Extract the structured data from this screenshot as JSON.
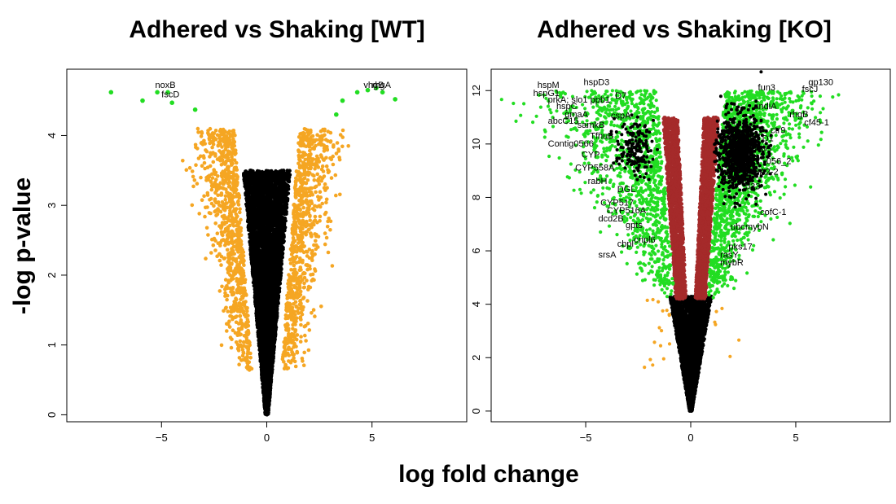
{
  "labels": {
    "ylabel": "-log p-value",
    "xlabel": "log fold change"
  },
  "chart_data": [
    {
      "type": "scatter",
      "title": "Adhered vs Shaking [WT]",
      "xlim": [
        -9.5,
        9.5
      ],
      "ylim": [
        -0.1,
        4.95
      ],
      "xticks": [
        -5,
        0,
        5
      ],
      "yticks": [
        0,
        1,
        2,
        3,
        4
      ],
      "xtick_labels": [
        "−5",
        "0",
        "5"
      ],
      "ytick_labels": [
        "0",
        "1",
        "2",
        "3",
        "4"
      ],
      "grid": false,
      "legend": "none",
      "colors": {
        "nonsignificant": "#000000",
        "significant": "#f5a623",
        "top": "#22dd22"
      },
      "top_points": [
        {
          "x": -7.4,
          "y": 4.62
        },
        {
          "x": -5.9,
          "y": 4.5
        },
        {
          "x": -5.2,
          "y": 4.62
        },
        {
          "x": -4.7,
          "y": 4.62
        },
        {
          "x": -4.5,
          "y": 4.47
        },
        {
          "x": -3.4,
          "y": 4.37
        },
        {
          "x": 3.3,
          "y": 4.3
        },
        {
          "x": 3.6,
          "y": 4.5
        },
        {
          "x": 4.3,
          "y": 4.62
        },
        {
          "x": 4.8,
          "y": 4.65
        },
        {
          "x": 5.2,
          "y": 4.68
        },
        {
          "x": 5.5,
          "y": 4.62
        },
        {
          "x": 6.1,
          "y": 4.52
        }
      ],
      "gene_labels": [
        {
          "text": "noxB",
          "x": -5.3,
          "y": 4.68
        },
        {
          "text": "fscD",
          "x": -5.0,
          "y": 4.55
        },
        {
          "text": "vhgB",
          "x": 4.6,
          "y": 4.68
        },
        {
          "text": "rhgA",
          "x": 5.0,
          "y": 4.68
        }
      ]
    },
    {
      "type": "scatter",
      "title": "Adhered vs Shaking [KO]",
      "xlim": [
        -9.5,
        9.5
      ],
      "ylim": [
        -0.4,
        12.8
      ],
      "xticks": [
        -5,
        0,
        5
      ],
      "yticks": [
        0,
        2,
        4,
        6,
        8,
        10,
        12
      ],
      "xtick_labels": [
        "−5",
        "0",
        "5"
      ],
      "ytick_labels": [
        "0",
        "2",
        "4",
        "6",
        "8",
        "10",
        "12"
      ],
      "grid": false,
      "legend": "none",
      "colors": {
        "nonsignificant": "#000000",
        "fdr_significant": "#a52a2a",
        "significant": "#22dd22",
        "outlier": "#f5a623"
      },
      "gene_labels": [
        {
          "text": "hspM",
          "x": -7.3,
          "y": 12.1
        },
        {
          "text": "hspG1",
          "x": -7.5,
          "y": 11.8
        },
        {
          "text": "prkA; slo1 ppb1",
          "x": -6.8,
          "y": 11.55
        },
        {
          "text": "hspC",
          "x": -6.4,
          "y": 11.3
        },
        {
          "text": "D7",
          "x": -3.6,
          "y": 11.7
        },
        {
          "text": "hspD3",
          "x": -5.1,
          "y": 12.2
        },
        {
          "text": "gmaA",
          "x": -6.0,
          "y": 11.0
        },
        {
          "text": "abcC15",
          "x": -6.8,
          "y": 10.75
        },
        {
          "text": "samkB",
          "x": -5.4,
          "y": 10.6
        },
        {
          "text": "cspA",
          "x": -3.8,
          "y": 10.95
        },
        {
          "text": "TfhuB",
          "x": -4.8,
          "y": 10.2
        },
        {
          "text": "Contig0566",
          "x": -6.8,
          "y": 9.9
        },
        {
          "text": "CYP",
          "x": -5.2,
          "y": 9.5
        },
        {
          "text": "CYP558A",
          "x": -5.5,
          "y": 9.0
        },
        {
          "text": "rabH",
          "x": -4.9,
          "y": 8.5
        },
        {
          "text": "DGL",
          "x": -3.5,
          "y": 8.2
        },
        {
          "text": "CYP517",
          "x": -4.3,
          "y": 7.7
        },
        {
          "text": "CYP516A",
          "x": -4.0,
          "y": 7.4
        },
        {
          "text": "dcd2B",
          "x": -4.4,
          "y": 7.1
        },
        {
          "text": "gpts",
          "x": -3.1,
          "y": 6.85
        },
        {
          "text": "cnpl6",
          "x": -2.7,
          "y": 6.3
        },
        {
          "text": "cbpl",
          "x": -3.5,
          "y": 6.15
        },
        {
          "text": "srsA",
          "x": -4.4,
          "y": 5.75
        },
        {
          "text": "fun3",
          "x": 3.2,
          "y": 12.0
        },
        {
          "text": "gp130",
          "x": 5.6,
          "y": 12.2
        },
        {
          "text": "fscJ",
          "x": 5.3,
          "y": 11.95
        },
        {
          "text": "andiA",
          "x": 3.0,
          "y": 11.3
        },
        {
          "text": "rhgB",
          "x": 4.7,
          "y": 11.0
        },
        {
          "text": "cf45-1",
          "x": 5.4,
          "y": 10.7
        },
        {
          "text": "ctr9",
          "x": 3.8,
          "y": 10.4
        },
        {
          "text": "D1",
          "x": 3.4,
          "y": 10.1
        },
        {
          "text": "vmA",
          "x": 3.0,
          "y": 9.75
        },
        {
          "text": "056_2",
          "x": 3.6,
          "y": 9.25
        },
        {
          "text": "08A2-2",
          "x": 2.8,
          "y": 8.85
        },
        {
          "text": "033",
          "x": 2.6,
          "y": 8.3
        },
        {
          "text": "cofC-1",
          "x": 3.3,
          "y": 7.35
        },
        {
          "text": "ubc",
          "x": 1.9,
          "y": 6.8
        },
        {
          "text": "mybN",
          "x": 2.6,
          "y": 6.8
        },
        {
          "text": "pks17",
          "x": 1.8,
          "y": 6.05
        },
        {
          "text": "rasY",
          "x": 1.4,
          "y": 5.75
        },
        {
          "text": "mybR",
          "x": 1.4,
          "y": 5.45
        }
      ]
    }
  ]
}
